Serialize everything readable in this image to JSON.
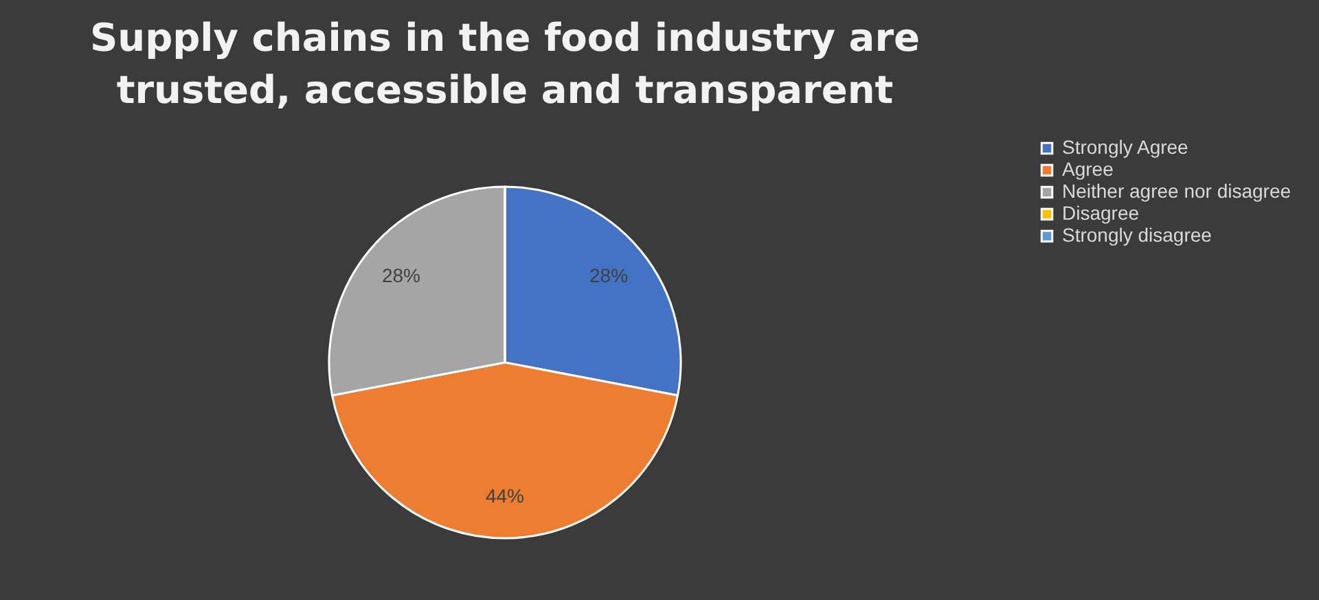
{
  "chart_data": {
    "type": "pie",
    "title": "Supply chains in the food industry are\ntrusted, accessible and transparent",
    "categories": [
      "Strongly Agree",
      "Agree",
      "Neither agree nor disagree",
      "Disagree",
      "Strongly disagree"
    ],
    "values": [
      28,
      44,
      28,
      0,
      0
    ],
    "colors": [
      "#4472c4",
      "#ed7d31",
      "#a5a5a5",
      "#ffc000",
      "#5b9bd5"
    ],
    "value_labels": [
      "28%",
      "44%",
      "28%",
      null,
      null
    ],
    "legend": "right"
  }
}
